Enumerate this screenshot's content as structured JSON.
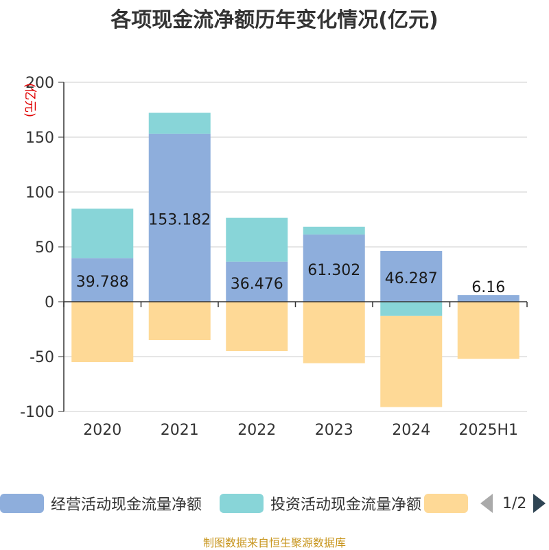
{
  "title": "各项现金流净额历年变化情况(亿元)",
  "footer": "制图数据来自恒生聚源数据库",
  "pager": {
    "text": "1/2"
  },
  "chart_data": {
    "type": "bar",
    "stacked": true,
    "title": "各项现金流净额历年变化情况(亿元)",
    "ylabel": "(亿元)",
    "ylim": [
      -100,
      200
    ],
    "yticks": [
      200,
      150,
      100,
      50,
      0,
      -50,
      -100
    ],
    "grid": true,
    "legend_position": "bottom",
    "categories": [
      "2020",
      "2021",
      "2022",
      "2023",
      "2024",
      "2025H1"
    ],
    "series": [
      {
        "name": "经营活动现金流量净额",
        "color": "#8eaedc",
        "values": [
          39.788,
          153.182,
          36.476,
          61.302,
          46.287,
          6.16
        ],
        "labels": [
          "39.788",
          "153.182",
          "36.476",
          "61.302",
          "46.287",
          "6.16"
        ]
      },
      {
        "name": "投资活动现金流量净额",
        "color": "#88d5d8",
        "values": [
          45,
          19,
          40,
          7,
          -13,
          0
        ]
      },
      {
        "name": "",
        "color": "#fed996",
        "values": [
          -55,
          -35,
          -45,
          -56,
          -83,
          -52
        ]
      }
    ]
  }
}
